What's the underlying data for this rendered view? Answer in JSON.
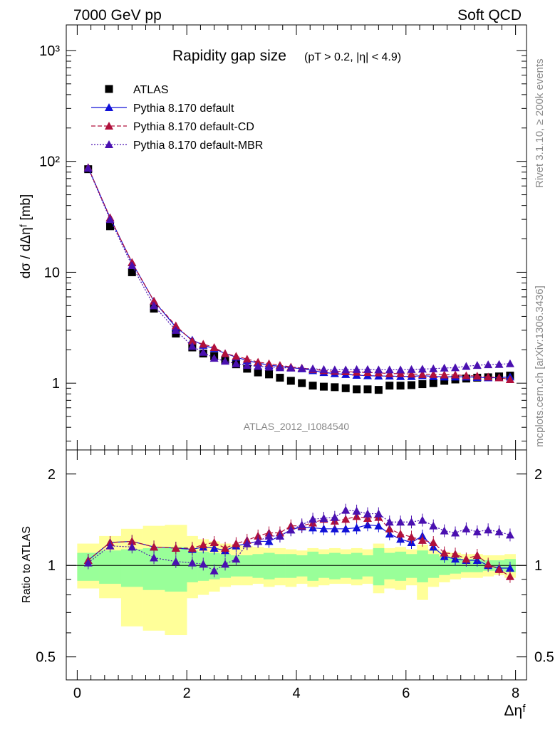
{
  "header": {
    "left": "7000 GeV pp",
    "right": "Soft QCD"
  },
  "side_labels": {
    "rivet": "Rivet 3.1.10, ≥ 200k events",
    "mcplots": "mcplots.cern.ch [arXiv:1306.3436]"
  },
  "watermark": "ATLAS_2012_I1084540",
  "colors": {
    "atlas": "#000000",
    "default": "#1010d8",
    "cd": "#b0103c",
    "mbr": "#4a10b0",
    "band_inner": "#99ff99",
    "band_outer": "#ffff99"
  },
  "chart_data": [
    {
      "type": "scatter",
      "title_main": "Rapidity gap size",
      "title_sub": "(pT > 0.2, |η| < 4.9)",
      "ylabel": "dσ / dΔηᶠ [mb]",
      "yscale": "log",
      "ylim": [
        0.25,
        1700
      ],
      "xlim": [
        -0.2,
        8.2
      ],
      "ytick_labels": [
        "10³",
        "10²",
        "10",
        "1"
      ],
      "ytick_values": [
        1000,
        100,
        10,
        1
      ],
      "x": [
        0.2,
        0.6,
        1.0,
        1.4,
        1.8,
        2.1,
        2.3,
        2.5,
        2.7,
        2.9,
        3.1,
        3.3,
        3.5,
        3.7,
        3.9,
        4.1,
        4.3,
        4.5,
        4.7,
        4.9,
        5.1,
        5.3,
        5.5,
        5.7,
        5.9,
        6.1,
        6.3,
        6.5,
        6.7,
        6.9,
        7.1,
        7.3,
        7.5,
        7.7,
        7.9
      ],
      "series": [
        {
          "name": "ATLAS",
          "marker": "square",
          "values": [
            85,
            26,
            10,
            4.7,
            2.8,
            2.1,
            1.85,
            1.75,
            1.6,
            1.48,
            1.35,
            1.25,
            1.2,
            1.12,
            1.05,
            1.0,
            0.95,
            0.93,
            0.92,
            0.9,
            0.88,
            0.88,
            0.87,
            0.95,
            0.95,
            0.96,
            0.98,
            1.0,
            1.05,
            1.08,
            1.1,
            1.12,
            1.13,
            1.15,
            1.17
          ]
        },
        {
          "name": "Pythia 8.170 default",
          "marker": "triangle",
          "line": "solid",
          "values": [
            88,
            31,
            12.2,
            5.5,
            3.2,
            2.45,
            2.2,
            2.05,
            1.85,
            1.72,
            1.6,
            1.52,
            1.45,
            1.42,
            1.38,
            1.35,
            1.3,
            1.25,
            1.22,
            1.2,
            1.18,
            1.17,
            1.16,
            1.16,
            1.15,
            1.15,
            1.17,
            1.15,
            1.14,
            1.14,
            1.14,
            1.13,
            1.12,
            1.12,
            1.14
          ]
        },
        {
          "name": "Pythia 8.170 default-CD",
          "marker": "triangle",
          "line": "dashed",
          "values": [
            88,
            31,
            12.3,
            5.5,
            3.3,
            2.4,
            2.25,
            2.1,
            1.85,
            1.75,
            1.65,
            1.55,
            1.5,
            1.45,
            1.4,
            1.37,
            1.33,
            1.3,
            1.28,
            1.27,
            1.26,
            1.25,
            1.24,
            1.22,
            1.22,
            1.21,
            1.2,
            1.2,
            1.19,
            1.19,
            1.17,
            1.16,
            1.14,
            1.12,
            1.08
          ]
        },
        {
          "name": "Pythia 8.170 default-MBR",
          "marker": "triangle",
          "line": "dotted",
          "values": [
            87,
            30,
            11.5,
            5.0,
            3.0,
            2.15,
            1.9,
            1.68,
            1.58,
            1.5,
            1.45,
            1.42,
            1.4,
            1.38,
            1.37,
            1.36,
            1.35,
            1.33,
            1.32,
            1.32,
            1.33,
            1.33,
            1.32,
            1.32,
            1.32,
            1.33,
            1.34,
            1.35,
            1.37,
            1.38,
            1.42,
            1.45,
            1.47,
            1.48,
            1.5
          ]
        }
      ]
    },
    {
      "type": "scatter",
      "ylabel": "Ratio to ATLAS",
      "xlabel": "Δηᶠ",
      "yscale": "log",
      "ylim": [
        0.42,
        2.4
      ],
      "xlim": [
        -0.2,
        8.2
      ],
      "ytick_labels": [
        "2",
        "1",
        "0.5"
      ],
      "ytick_values": [
        2,
        1,
        0.5
      ],
      "xtick_labels": [
        "0",
        "2",
        "4",
        "6",
        "8"
      ],
      "xtick_values": [
        0,
        2,
        4,
        6,
        8
      ],
      "x": [
        0.2,
        0.6,
        1.0,
        1.4,
        1.8,
        2.1,
        2.3,
        2.5,
        2.7,
        2.9,
        3.1,
        3.3,
        3.5,
        3.7,
        3.9,
        4.1,
        4.3,
        4.5,
        4.7,
        4.9,
        5.1,
        5.3,
        5.5,
        5.7,
        5.9,
        6.1,
        6.3,
        6.5,
        6.7,
        6.9,
        7.1,
        7.3,
        7.5,
        7.7,
        7.9
      ],
      "bin_edges": [
        0.0,
        0.4,
        0.8,
        1.2,
        1.6,
        2.0,
        2.2,
        2.4,
        2.6,
        2.8,
        3.0,
        3.2,
        3.4,
        3.6,
        3.8,
        4.0,
        4.2,
        4.4,
        4.6,
        4.8,
        5.0,
        5.2,
        5.4,
        5.6,
        5.8,
        6.0,
        6.2,
        6.4,
        6.6,
        6.8,
        7.0,
        7.2,
        7.4,
        7.6,
        7.8,
        8.0
      ],
      "bands": {
        "inner_low": [
          0.89,
          0.87,
          0.85,
          0.83,
          0.82,
          0.88,
          0.89,
          0.9,
          0.91,
          0.92,
          0.92,
          0.91,
          0.9,
          0.91,
          0.91,
          0.92,
          0.89,
          0.91,
          0.9,
          0.91,
          0.9,
          0.92,
          0.86,
          0.9,
          0.89,
          0.91,
          0.88,
          0.91,
          0.93,
          0.94,
          0.95,
          0.95,
          0.96,
          0.96,
          0.95
        ],
        "inner_high": [
          1.1,
          1.12,
          1.13,
          1.14,
          1.15,
          1.12,
          1.11,
          1.1,
          1.09,
          1.08,
          1.08,
          1.09,
          1.1,
          1.09,
          1.09,
          1.08,
          1.11,
          1.09,
          1.1,
          1.09,
          1.1,
          1.08,
          1.14,
          1.1,
          1.11,
          1.09,
          1.12,
          1.09,
          1.07,
          1.06,
          1.05,
          1.05,
          1.04,
          1.04,
          1.05
        ],
        "outer_low": [
          0.84,
          0.78,
          0.63,
          0.61,
          0.59,
          0.78,
          0.8,
          0.82,
          0.85,
          0.86,
          0.86,
          0.87,
          0.85,
          0.86,
          0.85,
          0.87,
          0.85,
          0.86,
          0.87,
          0.87,
          0.86,
          0.87,
          0.81,
          0.84,
          0.83,
          0.86,
          0.77,
          0.85,
          0.88,
          0.9,
          0.91,
          0.91,
          0.92,
          0.93,
          0.91
        ],
        "outer_high": [
          1.18,
          1.25,
          1.32,
          1.35,
          1.36,
          1.25,
          1.22,
          1.2,
          1.18,
          1.17,
          1.16,
          1.15,
          1.14,
          1.14,
          1.13,
          1.12,
          1.14,
          1.13,
          1.14,
          1.13,
          1.14,
          1.13,
          1.18,
          1.14,
          1.15,
          1.13,
          1.17,
          1.13,
          1.11,
          1.1,
          1.09,
          1.09,
          1.08,
          1.08,
          1.09
        ]
      },
      "series": [
        {
          "name": "Pythia 8.170 default",
          "marker": "triangle",
          "line": "solid",
          "values": [
            1.04,
            1.19,
            1.2,
            1.15,
            1.14,
            1.13,
            1.15,
            1.14,
            1.12,
            1.16,
            1.18,
            1.2,
            1.2,
            1.25,
            1.31,
            1.34,
            1.33,
            1.32,
            1.32,
            1.32,
            1.33,
            1.36,
            1.35,
            1.27,
            1.22,
            1.19,
            1.25,
            1.15,
            1.07,
            1.05,
            1.04,
            1.04,
            1.0,
            0.98,
            0.98
          ]
        },
        {
          "name": "Pythia 8.170 default-CD",
          "marker": "triangle",
          "line": "dashed",
          "values": [
            1.04,
            1.19,
            1.2,
            1.15,
            1.14,
            1.14,
            1.17,
            1.19,
            1.14,
            1.18,
            1.21,
            1.25,
            1.28,
            1.28,
            1.35,
            1.35,
            1.38,
            1.42,
            1.4,
            1.42,
            1.45,
            1.43,
            1.44,
            1.32,
            1.27,
            1.24,
            1.21,
            1.19,
            1.1,
            1.09,
            1.05,
            1.08,
            1.01,
            0.97,
            0.92
          ]
        },
        {
          "name": "Pythia 8.170 default-MBR",
          "marker": "triangle",
          "line": "dotted",
          "values": [
            1.02,
            1.16,
            1.15,
            1.06,
            1.03,
            1.02,
            1.01,
            0.96,
            1.01,
            1.05,
            1.18,
            1.2,
            1.25,
            1.25,
            1.31,
            1.36,
            1.42,
            1.43,
            1.44,
            1.52,
            1.51,
            1.48,
            1.48,
            1.39,
            1.39,
            1.39,
            1.41,
            1.35,
            1.3,
            1.28,
            1.32,
            1.29,
            1.31,
            1.29,
            1.26
          ]
        }
      ]
    }
  ]
}
